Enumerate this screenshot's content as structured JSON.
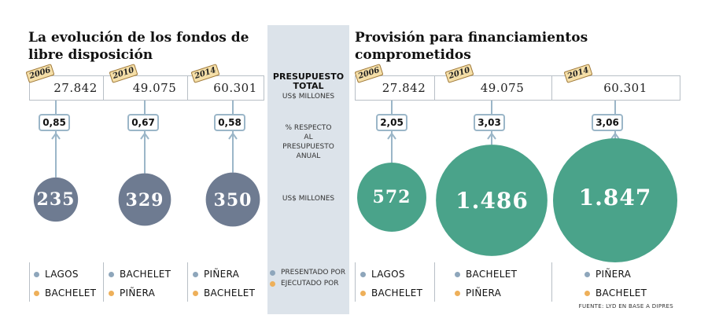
{
  "colors": {
    "left_circle": "#6e7b91",
    "right_circle": "#4aa38a",
    "presentado_dot": "#8ea6bb",
    "ejecutado_dot": "#eeb05a",
    "connector": "#9bb6c8",
    "center_band": "#dce3ea"
  },
  "left_title": "La evolución de los fondos de libre disposición",
  "right_title": "Provisión para financiamientos comprometidos",
  "center": {
    "budget_heading_1": "PRESUPUESTO",
    "budget_heading_2": "TOTAL",
    "budget_units": "US$ MILLONES",
    "pct_label": "% RESPECTO AL PRESUPUESTO ANUAL",
    "amount_units": "US$ MILLONES",
    "presentado_label": "PRESENTADO POR",
    "ejecutado_label": "EJECUTADO POR"
  },
  "source": "FUENTE: LYD EN BASE A DIPRES",
  "chart_data": [
    {
      "type": "bubble",
      "title": "La evolución de los fondos de libre disposición",
      "categories": [
        "2006",
        "2010",
        "2014"
      ],
      "budget_total": [
        "27.842",
        "49.075",
        "60.301"
      ],
      "percent_of_budget": [
        "0,85",
        "0,67",
        "0,58"
      ],
      "amount_labels": [
        "235",
        "329",
        "350"
      ],
      "values": [
        235,
        329,
        350
      ],
      "presentado_por": [
        "LAGOS",
        "BACHELET",
        "PIÑERA"
      ],
      "ejecutado_por": [
        "BACHELET",
        "PIÑERA",
        "BACHELET"
      ]
    },
    {
      "type": "bubble",
      "title": "Provisión para financiamientos comprometidos",
      "categories": [
        "2006",
        "2010",
        "2014"
      ],
      "budget_total": [
        "27.842",
        "49.075",
        "60.301"
      ],
      "percent_of_budget": [
        "2,05",
        "3,03",
        "3,06"
      ],
      "amount_labels": [
        "572",
        "1.486",
        "1.847"
      ],
      "values": [
        572,
        1486,
        1847
      ],
      "presentado_por": [
        "LAGOS",
        "BACHELET",
        "PIÑERA"
      ],
      "ejecutado_por": [
        "BACHELET",
        "PIÑERA",
        "BACHELET"
      ]
    }
  ]
}
